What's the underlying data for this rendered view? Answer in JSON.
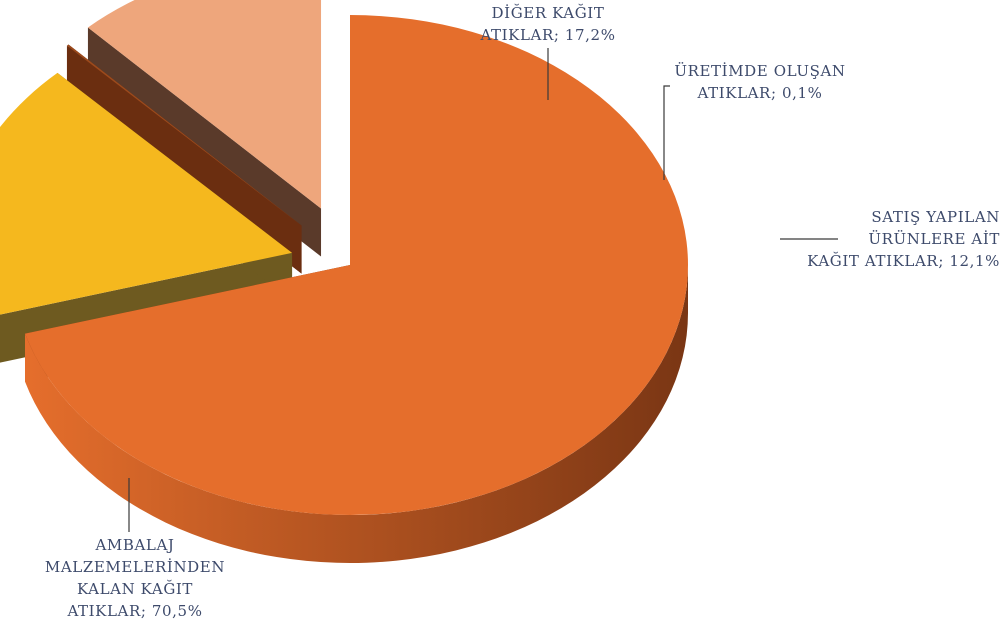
{
  "chart_data": {
    "type": "pie",
    "style": "3d-exploded",
    "title": "",
    "slices": [
      {
        "lines": [
          "AMBALAJ",
          "MALZEMELERİNDEN",
          "KALAN KAĞIT",
          "ATIKLAR; 70,5%"
        ],
        "value": 70.5,
        "color": "#E56E2C",
        "side_color": "#7A3614"
      },
      {
        "lines": [
          "DİĞER KAĞIT",
          "ATIKLAR; 17,2%"
        ],
        "value": 17.2,
        "color": "#F5B81E",
        "side_color": "#6E5A20"
      },
      {
        "lines": [
          "ÜRETİMDE OLUŞAN",
          "ATIKLAR; 0,1%"
        ],
        "value": 0.1,
        "color": "#9C4A1C",
        "side_color": "#6B2E10"
      },
      {
        "lines": [
          "SATIŞ YAPILAN",
          "ÜRÜNLERE AİT",
          "KAĞIT ATIKLAR; 12,1%"
        ],
        "value": 12.1,
        "color": "#EEA67C",
        "side_color": "#5A3A2A"
      }
    ]
  }
}
